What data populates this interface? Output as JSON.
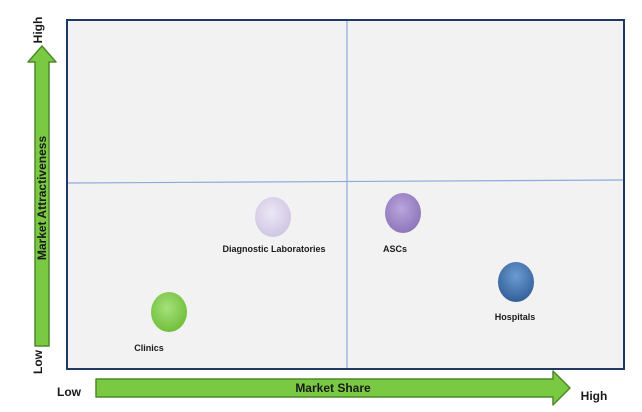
{
  "axes": {
    "y_title": "Market Attractiveness",
    "y_high": "High",
    "y_low": "Low",
    "x_title": "Market Share",
    "x_low": "Low",
    "x_high": "High"
  },
  "segments": [
    {
      "id": "clinics",
      "label": "Clinics",
      "market_share": "Low",
      "market_attractiveness": "Low",
      "color": "#7ac943"
    },
    {
      "id": "diagnostic-laboratories",
      "label": "Diagnostic Laboratories",
      "market_share": "Low",
      "market_attractiveness": "Low",
      "color": "#d9d2e9"
    },
    {
      "id": "ascs",
      "label": "ASCs",
      "market_share": "High",
      "market_attractiveness": "Low",
      "color": "#9c84c4"
    },
    {
      "id": "hospitals",
      "label": "Hospitals",
      "market_share": "High",
      "market_attractiveness": "Low",
      "color": "#3d6fa8"
    }
  ],
  "colors": {
    "quadrant_fill": "#f2f2f2",
    "quadrant_border": "#1f3864",
    "divider": "#8eaadb",
    "arrow_fill": "#7ac943",
    "arrow_stroke": "#4e8a2a"
  }
}
